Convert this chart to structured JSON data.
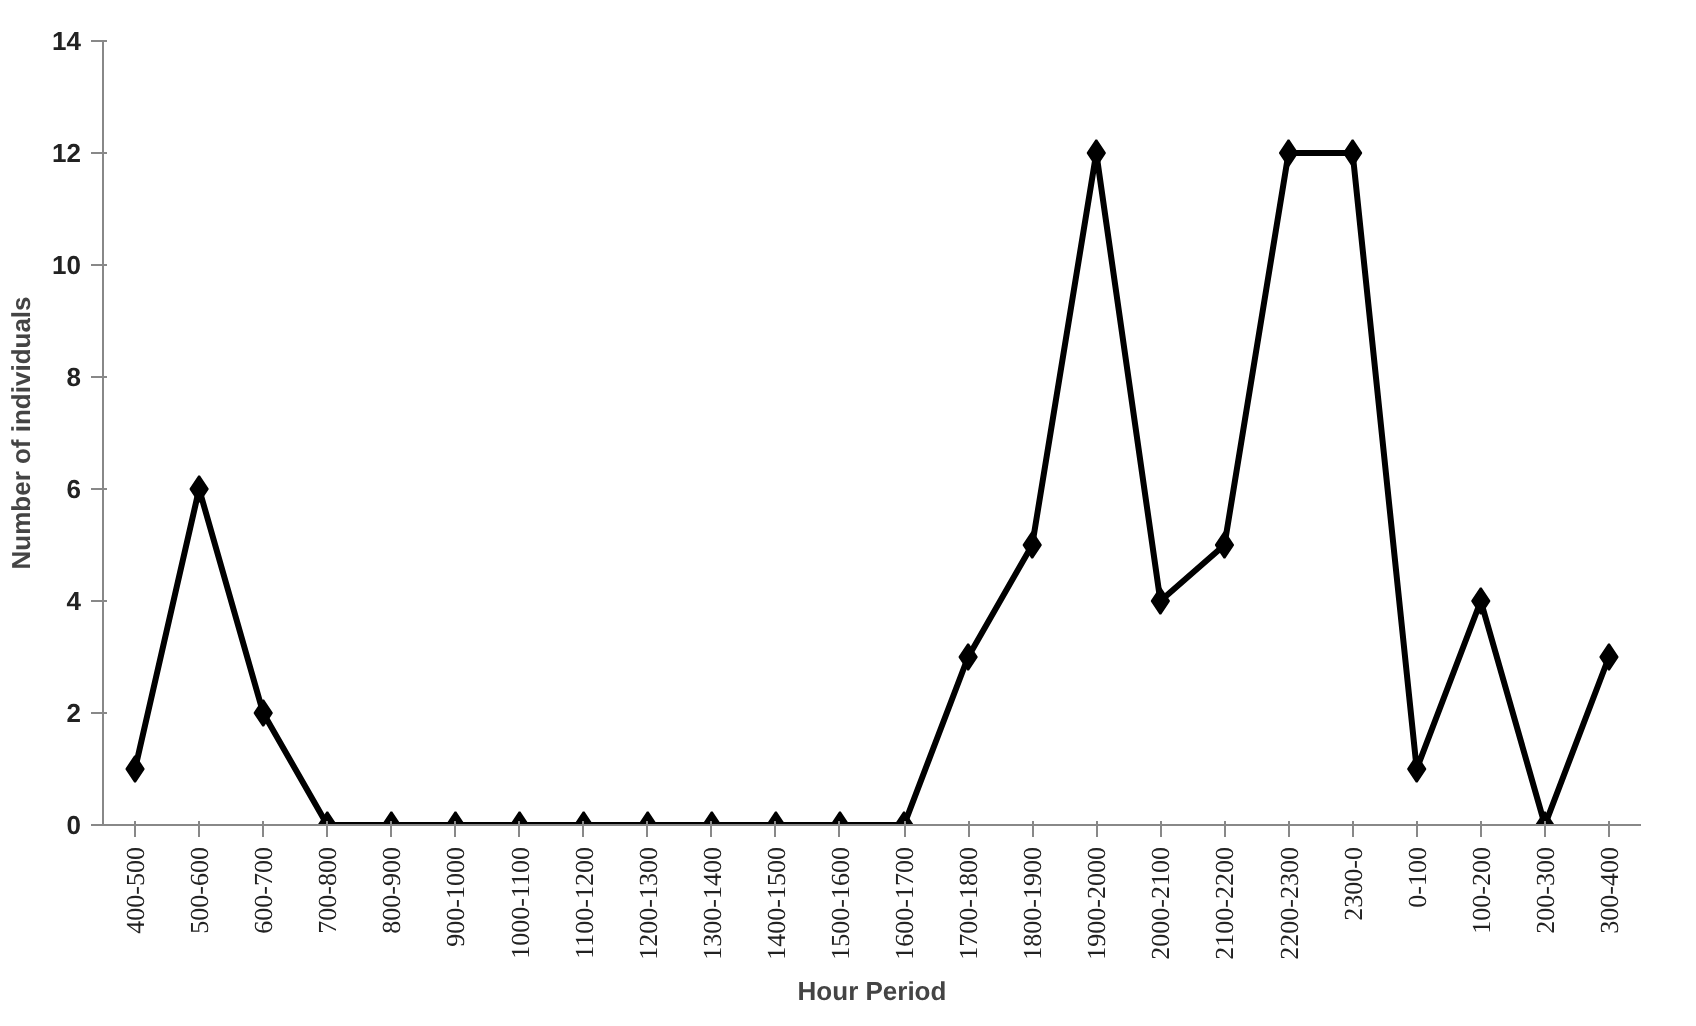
{
  "chart_data": {
    "type": "line",
    "xlabel": "Hour Period",
    "ylabel": "Number of individuals",
    "categories": [
      "400-500",
      "500-600",
      "600-700",
      "700-800",
      "800-900",
      "900-1000",
      "1000-1100",
      "1100-1200",
      "1200-1300",
      "1300-1400",
      "1400-1500",
      "1500-1600",
      "1600-1700",
      "1700-1800",
      "1800-1900",
      "1900-2000",
      "2000-2100",
      "2100-2200",
      "2200-2300",
      "2300-0",
      "0-100",
      "100-200",
      "200-300",
      "300-400"
    ],
    "series": [
      {
        "color": "#000000",
        "values": [
          1,
          6,
          2,
          0,
          0,
          0,
          0,
          0,
          0,
          0,
          0,
          0,
          0,
          3,
          5,
          12,
          4,
          5,
          12,
          12,
          1,
          4,
          0,
          3
        ]
      }
    ],
    "ylim": [
      0,
      14
    ],
    "yticks": [
      0,
      2,
      4,
      6,
      8,
      10,
      12,
      14
    ],
    "grid": false,
    "marker": "diamond",
    "line_style": "solid"
  }
}
